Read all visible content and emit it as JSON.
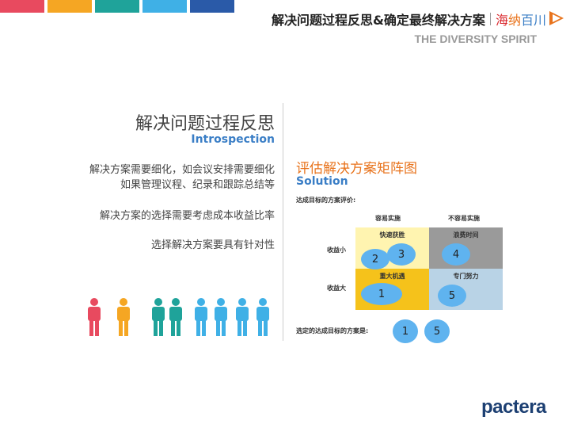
{
  "header": {
    "title": "解决问题过程反思&确定最终解决方案",
    "brand_chars": [
      "海",
      "纳",
      "百",
      "川"
    ],
    "brand_colors": [
      "#d9262c",
      "#e8731c",
      "#3a7ec6",
      "#3a7ec6"
    ],
    "subtitle": "THE DIVERSITY SPIRIT",
    "top_bar_colors": [
      "#e84a5f",
      "#f5a623",
      "#1fa39a",
      "#3fb0e6",
      "#2a5aa8"
    ]
  },
  "left": {
    "title": "解决问题过程反思",
    "title_en": "Introspection",
    "line1a": "解决方案需要细化，如会议安排需要细化",
    "line1b": "如果管理议程、纪录和跟踪总结等",
    "line2": "解决方案的选择需要考虑成本收益比率",
    "line3": "选择解决方案要具有针对性",
    "people_colors": [
      "#e84a5f",
      "#f5a623",
      "#1fa39a",
      "#1fa39a",
      "#3fb0e6",
      "#3fb0e6",
      "#3fb0e6",
      "#3fb0e6"
    ]
  },
  "right": {
    "title": "评估解决方案矩阵图",
    "title_en": "Solution",
    "eval_label": "达成目标的方案评价:",
    "col1": "容易实施",
    "col2": "不容易实施",
    "row1": "收益小",
    "row2": "收益大",
    "cells": {
      "tl": "快速获胜",
      "tr": "浪费时间",
      "bl": "重大机遇",
      "br": "专门努力"
    },
    "cell_colors": {
      "tl": "#fff4b0",
      "tr": "#9a9a9a",
      "bl": "#f5c21b",
      "br": "#b9d3e6"
    },
    "ovals": {
      "a": "2",
      "b": "3",
      "c": "4",
      "d": "1",
      "e": "5"
    },
    "chosen_label": "选定的达成目标的方案是:",
    "chosen": [
      "1",
      "5"
    ]
  },
  "logo": "pactera"
}
